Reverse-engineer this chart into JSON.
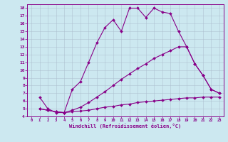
{
  "xlabel": "Windchill (Refroidissement éolien,°C)",
  "bg_color": "#cce8f0",
  "line_color": "#880088",
  "xlim": [
    -0.5,
    23.5
  ],
  "ylim": [
    4,
    18.5
  ],
  "xticks": [
    0,
    1,
    2,
    3,
    4,
    5,
    6,
    7,
    8,
    9,
    10,
    11,
    12,
    13,
    14,
    15,
    16,
    17,
    18,
    19,
    20,
    21,
    22,
    23
  ],
  "yticks": [
    4,
    5,
    6,
    7,
    8,
    9,
    10,
    11,
    12,
    13,
    14,
    15,
    16,
    17,
    18
  ],
  "series": [
    {
      "x": [
        1,
        2,
        3,
        4,
        5,
        6,
        7,
        8,
        9,
        10,
        11,
        12,
        13,
        14,
        15,
        16,
        17,
        18,
        19,
        20,
        21,
        22,
        23
      ],
      "y": [
        6.5,
        5.0,
        4.5,
        4.5,
        7.5,
        8.5,
        11.0,
        13.5,
        15.5,
        16.5,
        15.0,
        18.0,
        18.0,
        16.8,
        18.0,
        17.5,
        17.3,
        15.0,
        13.0,
        10.8,
        9.3,
        7.5,
        7.0
      ]
    },
    {
      "x": [
        1,
        2,
        3,
        4,
        5,
        6,
        7,
        8,
        9,
        10,
        11,
        12,
        13,
        14,
        15,
        16,
        17,
        18,
        19,
        20,
        21,
        22,
        23
      ],
      "y": [
        5.0,
        4.8,
        4.6,
        4.5,
        4.8,
        5.2,
        5.8,
        6.5,
        7.2,
        8.0,
        8.8,
        9.5,
        10.2,
        10.8,
        11.5,
        12.0,
        12.5,
        13.0,
        13.0,
        10.8,
        9.3,
        7.5,
        7.0
      ]
    },
    {
      "x": [
        1,
        2,
        3,
        4,
        5,
        6,
        7,
        8,
        9,
        10,
        11,
        12,
        13,
        14,
        15,
        16,
        17,
        18,
        19,
        20,
        21,
        22,
        23
      ],
      "y": [
        5.0,
        4.8,
        4.6,
        4.5,
        4.6,
        4.7,
        4.8,
        5.0,
        5.2,
        5.3,
        5.5,
        5.6,
        5.8,
        5.9,
        6.0,
        6.1,
        6.2,
        6.3,
        6.4,
        6.4,
        6.5,
        6.5,
        6.5
      ]
    }
  ]
}
